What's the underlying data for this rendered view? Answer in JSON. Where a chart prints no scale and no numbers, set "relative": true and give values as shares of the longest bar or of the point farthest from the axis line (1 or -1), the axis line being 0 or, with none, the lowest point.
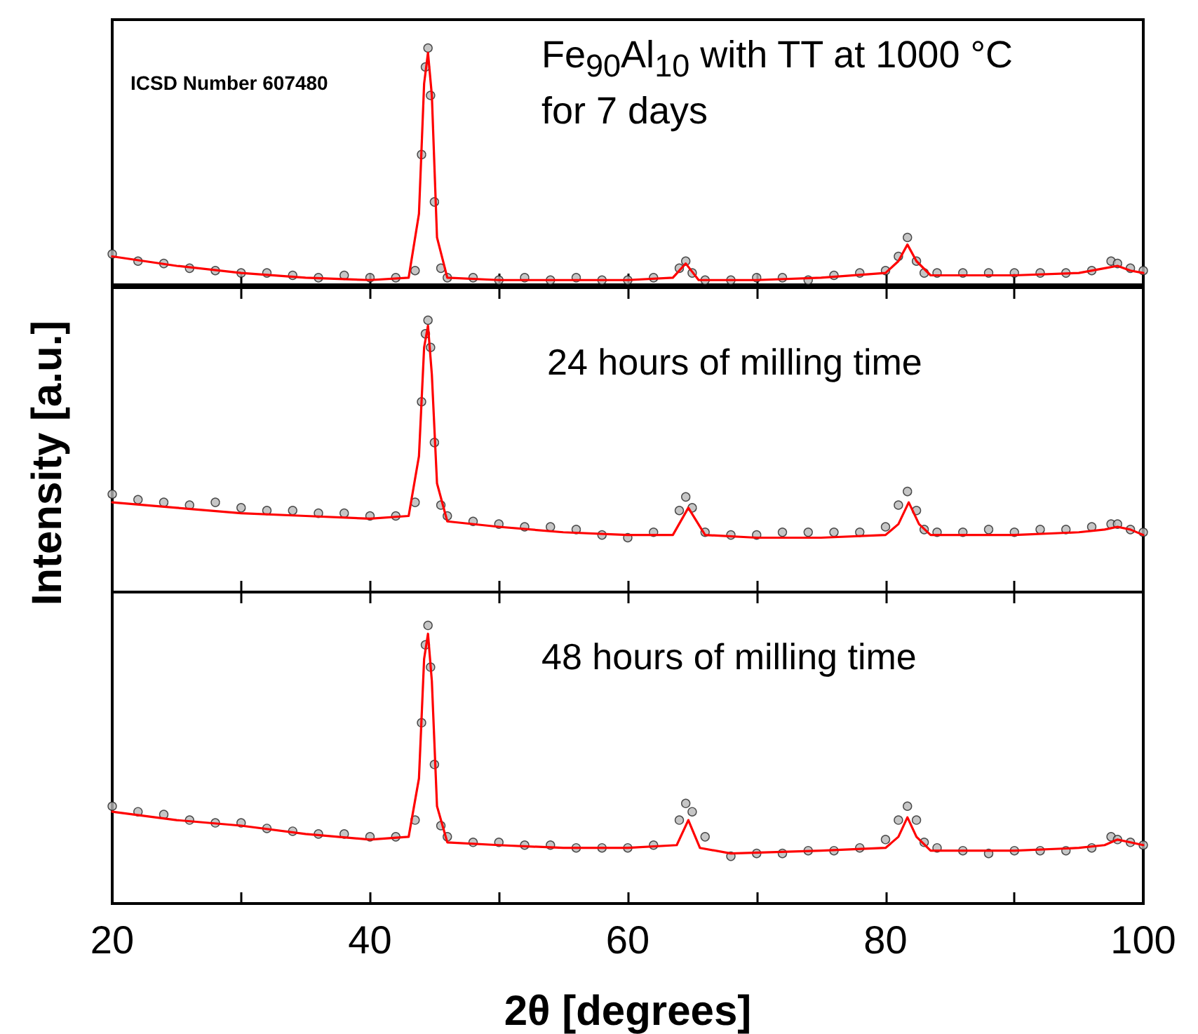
{
  "chart_data": [
    {
      "type": "scatter",
      "relative": true,
      "xlim": [
        20,
        100
      ],
      "xticks": [
        20,
        {
          "value": 30,
          "label": null
        },
        40,
        {
          "value": 50,
          "label": null
        },
        60,
        {
          "value": 70,
          "label": null
        },
        80,
        {
          "value": 90,
          "label": null
        },
        100
      ],
      "tick_labels": false,
      "annotations": [
        "ICSD Number 607480",
        "Fe$_{90}$Al$_{10}$ with TT at 1000 °C for 7 days"
      ],
      "series": [
        {
          "marker": "circle",
          "color": "#b8b8b8",
          "x": [
            20,
            22,
            24,
            26,
            28,
            30,
            32,
            34,
            36,
            38,
            40,
            42,
            43.5,
            44,
            44.3,
            44.5,
            44.7,
            45,
            45.5,
            46,
            48,
            50,
            52,
            54,
            56,
            58,
            60,
            62,
            64,
            64.5,
            65,
            66,
            68,
            70,
            72,
            74,
            76,
            78,
            80,
            81,
            81.7,
            82.4,
            83,
            84,
            86,
            88,
            90,
            92,
            94,
            96,
            97.5,
            98,
            99,
            100
          ],
          "values": [
            0.13,
            0.1,
            0.09,
            0.07,
            0.06,
            0.05,
            0.05,
            0.04,
            0.03,
            0.04,
            0.03,
            0.03,
            0.06,
            0.55,
            0.92,
            1,
            0.8,
            0.35,
            0.07,
            0.03,
            0.03,
            0.02,
            0.03,
            0.02,
            0.03,
            0.02,
            0.02,
            0.03,
            0.07,
            0.1,
            0.05,
            0.02,
            0.02,
            0.03,
            0.03,
            0.02,
            0.04,
            0.05,
            0.06,
            0.12,
            0.2,
            0.1,
            0.05,
            0.05,
            0.05,
            0.05,
            0.05,
            0.05,
            0.05,
            0.06,
            0.1,
            0.09,
            0.07,
            0.06
          ]
        },
        {
          "type": "line",
          "marker": "none",
          "color": "#ff0000",
          "x": [
            20,
            25,
            30,
            35,
            40,
            43,
            43.8,
            44.2,
            44.5,
            44.8,
            45.2,
            46,
            50,
            55,
            60,
            63.5,
            64.5,
            65.5,
            70,
            75,
            80,
            81,
            81.7,
            82.4,
            83.5,
            90,
            95,
            97,
            98,
            99,
            100
          ],
          "values": [
            0.12,
            0.08,
            0.05,
            0.03,
            0.02,
            0.03,
            0.3,
            0.85,
            0.98,
            0.8,
            0.2,
            0.03,
            0.02,
            0.02,
            0.02,
            0.03,
            0.09,
            0.02,
            0.02,
            0.03,
            0.05,
            0.1,
            0.17,
            0.1,
            0.04,
            0.04,
            0.05,
            0.07,
            0.08,
            0.06,
            0.05
          ]
        }
      ]
    },
    {
      "type": "scatter",
      "relative": true,
      "xlim": [
        20,
        100
      ],
      "xticks": [
        20,
        {
          "value": 30,
          "label": null
        },
        40,
        {
          "value": 50,
          "label": null
        },
        60,
        {
          "value": 70,
          "label": null
        },
        80,
        {
          "value": 90,
          "label": null
        },
        100
      ],
      "tick_labels": false,
      "ylabel": "Intensity [a.u.]",
      "annotations": [
        "24 hours of milling time"
      ],
      "series": [
        {
          "marker": "circle",
          "color": "#b8b8b8",
          "x": [
            20,
            22,
            24,
            26,
            28,
            30,
            32,
            34,
            36,
            38,
            40,
            42,
            43.5,
            44,
            44.3,
            44.5,
            44.7,
            45,
            45.5,
            46,
            48,
            50,
            52,
            54,
            56,
            58,
            60,
            62,
            64,
            64.5,
            65,
            66,
            68,
            70,
            72,
            74,
            76,
            78,
            80,
            81,
            81.7,
            82.4,
            83,
            84,
            86,
            88,
            90,
            92,
            94,
            96,
            97.5,
            98,
            99,
            100
          ],
          "values": [
            0.36,
            0.34,
            0.33,
            0.32,
            0.33,
            0.31,
            0.3,
            0.3,
            0.29,
            0.29,
            0.28,
            0.28,
            0.33,
            0.7,
            0.95,
            1,
            0.9,
            0.55,
            0.32,
            0.28,
            0.26,
            0.25,
            0.24,
            0.24,
            0.23,
            0.21,
            0.2,
            0.22,
            0.3,
            0.35,
            0.31,
            0.22,
            0.21,
            0.21,
            0.22,
            0.22,
            0.22,
            0.22,
            0.24,
            0.32,
            0.37,
            0.3,
            0.23,
            0.22,
            0.22,
            0.23,
            0.22,
            0.23,
            0.23,
            0.24,
            0.25,
            0.25,
            0.23,
            0.22
          ]
        },
        {
          "type": "line",
          "marker": "none",
          "color": "#ff0000",
          "x": [
            20,
            25,
            30,
            35,
            40,
            43,
            43.8,
            44.2,
            44.5,
            44.8,
            45.2,
            46,
            50,
            55,
            60,
            63.5,
            64.7,
            66,
            70,
            75,
            80,
            81,
            81.8,
            82.6,
            83.5,
            90,
            95,
            97,
            98,
            99,
            100
          ],
          "values": [
            0.33,
            0.31,
            0.29,
            0.28,
            0.27,
            0.28,
            0.5,
            0.9,
            0.98,
            0.8,
            0.4,
            0.26,
            0.24,
            0.22,
            0.21,
            0.21,
            0.31,
            0.21,
            0.2,
            0.2,
            0.21,
            0.25,
            0.33,
            0.25,
            0.21,
            0.21,
            0.22,
            0.23,
            0.24,
            0.23,
            0.21
          ]
        }
      ]
    },
    {
      "type": "scatter",
      "relative": true,
      "xlim": [
        20,
        100
      ],
      "xticks": [
        20,
        {
          "value": 30,
          "label": null
        },
        40,
        {
          "value": 50,
          "label": null
        },
        60,
        {
          "value": 70,
          "label": null
        },
        80,
        {
          "value": 90,
          "label": null
        },
        100
      ],
      "tick_labels": "x",
      "xlabel": "2θ [degrees]",
      "annotations": [
        "48 hours of milling time"
      ],
      "series": [
        {
          "marker": "circle",
          "color": "#b8b8b8",
          "x": [
            20,
            22,
            24,
            26,
            28,
            30,
            32,
            34,
            36,
            38,
            40,
            42,
            43.5,
            44,
            44.3,
            44.5,
            44.7,
            45,
            45.5,
            46,
            48,
            50,
            52,
            54,
            56,
            58,
            60,
            62,
            64,
            64.5,
            65,
            66,
            68,
            70,
            72,
            74,
            76,
            78,
            80,
            81,
            81.7,
            82.4,
            83,
            84,
            86,
            88,
            90,
            92,
            94,
            96,
            97.5,
            98,
            99,
            100
          ],
          "values": [
            0.35,
            0.33,
            0.32,
            0.3,
            0.29,
            0.29,
            0.27,
            0.26,
            0.25,
            0.25,
            0.24,
            0.24,
            0.3,
            0.65,
            0.93,
            1,
            0.85,
            0.5,
            0.28,
            0.24,
            0.22,
            0.22,
            0.21,
            0.21,
            0.2,
            0.2,
            0.2,
            0.21,
            0.3,
            0.36,
            0.33,
            0.24,
            0.17,
            0.18,
            0.18,
            0.19,
            0.19,
            0.2,
            0.23,
            0.3,
            0.35,
            0.3,
            0.22,
            0.2,
            0.19,
            0.18,
            0.19,
            0.19,
            0.19,
            0.2,
            0.24,
            0.23,
            0.22,
            0.21
          ]
        },
        {
          "type": "line",
          "marker": "none",
          "color": "#ff0000",
          "x": [
            20,
            25,
            30,
            35,
            40,
            43,
            43.8,
            44.2,
            44.5,
            44.8,
            45.2,
            46,
            50,
            55,
            60,
            63.8,
            64.7,
            65.6,
            68,
            75,
            80,
            81,
            81.7,
            82.4,
            83.5,
            90,
            95,
            97,
            98,
            99,
            100
          ],
          "values": [
            0.33,
            0.3,
            0.28,
            0.25,
            0.23,
            0.24,
            0.45,
            0.88,
            0.97,
            0.8,
            0.35,
            0.22,
            0.21,
            0.2,
            0.2,
            0.21,
            0.3,
            0.2,
            0.18,
            0.19,
            0.2,
            0.24,
            0.31,
            0.24,
            0.19,
            0.19,
            0.2,
            0.21,
            0.23,
            0.22,
            0.21
          ]
        }
      ]
    }
  ]
}
